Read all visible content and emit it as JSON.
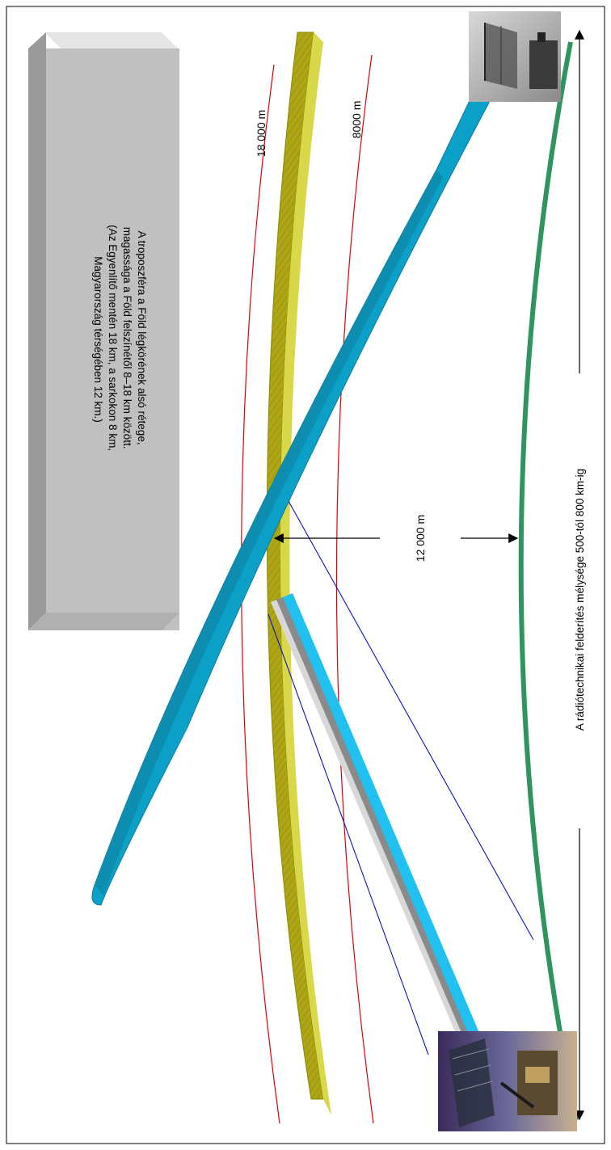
{
  "info_box": {
    "lines": [
      "A troposzféra a Föld légkörének alsó rétege,",
      "magassága a Föld felszínétől 8–18 km között.",
      "(Az Egyenlítő mentén 18 km, a sarkokon 8 km,",
      "Magyarország térségében 12 km.)"
    ]
  },
  "altitude_labels": {
    "upper": "18 000 m",
    "lower": "8000 m",
    "middle": "12 000 m"
  },
  "depth_label": "A rádiótechnikai felderítés mélysége 500-tól 800 km-ig",
  "colors": {
    "beam": "#0aa0c8",
    "tropopause_band": "#b5b51a",
    "altitude_lines": "#e00000",
    "ground_curve": "#2e9460",
    "signal_lines": "#1010c0",
    "info_box": "#c0c0c0",
    "arrow_cyan": "#20c0f0"
  }
}
